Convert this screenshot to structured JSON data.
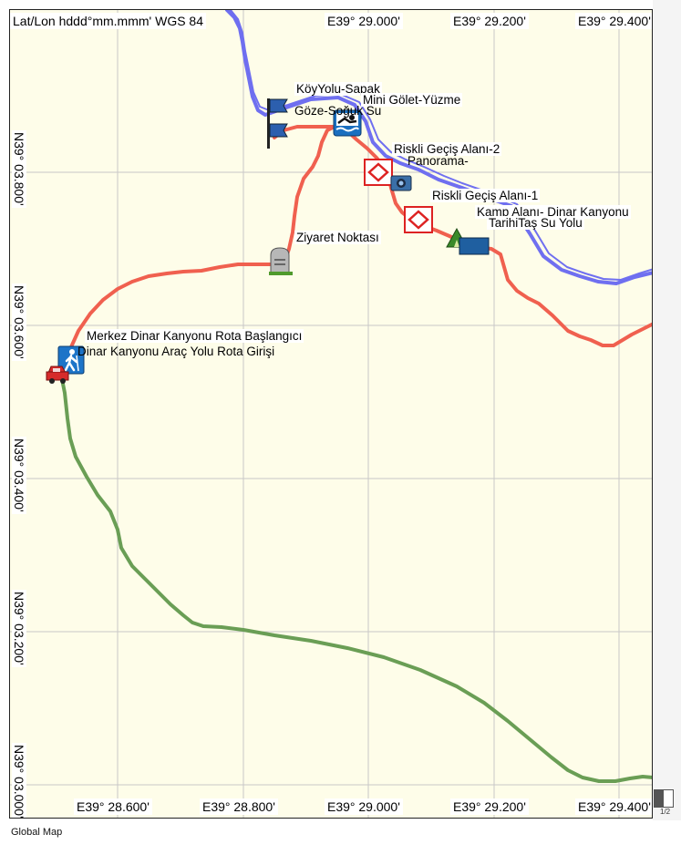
{
  "map": {
    "header_label": "Lat/Lon hddd°mm.mmm' WGS 84",
    "top_lon_labels": [
      "E39° 29.000'",
      "E39° 29.200'",
      "E39° 29.400'"
    ],
    "bottom_lon_labels": [
      "E39° 28.600'",
      "E39° 28.800'",
      "E39° 29.000'",
      "E39° 29.200'",
      "E39° 29.400'"
    ],
    "lat_labels": [
      "N39° 03.800'",
      "N39° 03.600'",
      "N39° 03.400'",
      "N39° 03.200'",
      "N39° 03.000'"
    ],
    "colors": {
      "background": "#fefde9",
      "grid": "#c8c8c8",
      "river": "#6f6ff0",
      "red_route": "#f0604f",
      "green_route": "#6a9e55"
    },
    "pois": [
      {
        "label": "KöyYolu-Sapak",
        "icon": "blue-flag-icon"
      },
      {
        "label": "Mini Gölet-Yüzme",
        "icon": "swimming-icon"
      },
      {
        "label": "Göze-Soğuk Su",
        "icon": "blue-flag-icon"
      },
      {
        "label": "Riskli Geçiş Alanı-2",
        "icon": "red-diamond-icon"
      },
      {
        "label": "Panorama-",
        "icon": "camera-icon"
      },
      {
        "label": "Riskli Geçiş Alanı-1",
        "icon": "red-diamond-icon"
      },
      {
        "label": "Kamp Alanı- Dinar Kanyonu",
        "icon": "camping-tent-icon"
      },
      {
        "label": "TarihiTaş Su Yolu",
        "icon": "blue-rectangle-icon"
      },
      {
        "label": "Ziyaret Noktası",
        "icon": "gravestone-icon"
      },
      {
        "label": "Merkez Dinar Kanyonu Rota Başlangıcı",
        "icon": "hiker-icon"
      },
      {
        "label": "Dinar Kanyonu Araç Yolu Rota Girişi",
        "icon": "red-car-icon"
      }
    ]
  },
  "scroll": {
    "page_indicator": "1/2"
  },
  "footer": {
    "caption": "Global Map"
  }
}
